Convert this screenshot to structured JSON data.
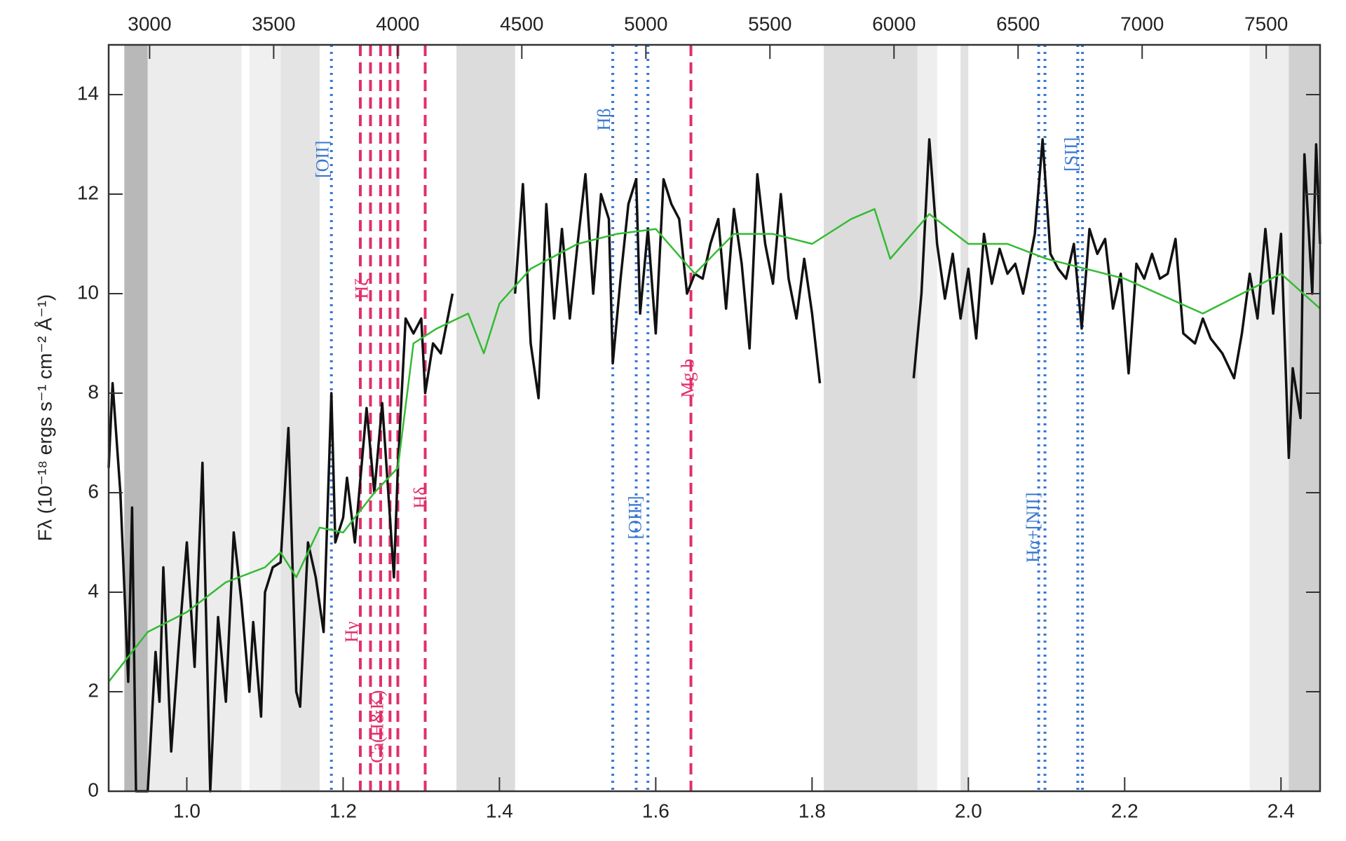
{
  "chart_data": {
    "type": "line",
    "ylabel": "Fλ (10⁻¹⁸ ergs s⁻¹ cm⁻² Å⁻¹)",
    "xlim": [
      0.9,
      2.45
    ],
    "xticks": [
      {
        "value": 1.0,
        "label": "1.0"
      },
      {
        "value": 1.2,
        "label": "1.2"
      },
      {
        "value": 1.4,
        "label": "1.4"
      },
      {
        "value": 1.6,
        "label": "1.6"
      },
      {
        "value": 1.8,
        "label": "1.8"
      },
      {
        "value": 2.0,
        "label": "2.0"
      },
      {
        "value": 2.2,
        "label": "2.2"
      },
      {
        "value": 2.4,
        "label": "2.4"
      }
    ],
    "x2lim": [
      2835,
      7717
    ],
    "x2ticks": [
      3000,
      3500,
      4000,
      4500,
      5000,
      5500,
      6000,
      6500,
      7000,
      7500
    ],
    "ylim": [
      0,
      15
    ],
    "yticks": [
      0,
      2,
      4,
      6,
      8,
      10,
      12,
      14
    ],
    "bands": [
      {
        "range": [
          0.92,
          0.95
        ],
        "color": "#b8b8b8"
      },
      {
        "range": [
          0.95,
          1.07
        ],
        "color": "#ececec"
      },
      {
        "range": [
          1.08,
          1.12
        ],
        "color": "#f0f0f0"
      },
      {
        "range": [
          1.12,
          1.17
        ],
        "color": "#e4e4e4"
      },
      {
        "range": [
          1.345,
          1.42
        ],
        "color": "#dcdcdc"
      },
      {
        "range": [
          1.815,
          1.935
        ],
        "color": "#dcdcdc"
      },
      {
        "range": [
          1.935,
          1.96
        ],
        "color": "#eeeeee"
      },
      {
        "range": [
          1.99,
          2.0
        ],
        "color": "#e2e2e2"
      },
      {
        "range": [
          2.36,
          2.41
        ],
        "color": "#eeeeee"
      },
      {
        "range": [
          2.41,
          2.45
        ],
        "color": "#d0d0d0"
      }
    ],
    "lines": [
      {
        "x": 1.185,
        "color": "#3a78d0",
        "style": "dotted"
      },
      {
        "x": 1.222,
        "color": "#e0306a",
        "style": "dashed"
      },
      {
        "x": 1.235,
        "color": "#e0306a",
        "style": "dashed"
      },
      {
        "x": 1.248,
        "color": "#e0306a",
        "style": "dashed"
      },
      {
        "x": 1.26,
        "color": "#e0306a",
        "style": "dashed"
      },
      {
        "x": 1.27,
        "color": "#e0306a",
        "style": "dashed"
      },
      {
        "x": 1.305,
        "color": "#e0306a",
        "style": "dashed"
      },
      {
        "x": 1.545,
        "color": "#3a78d0",
        "style": "dotted"
      },
      {
        "x": 1.575,
        "color": "#3a78d0",
        "style": "dotted"
      },
      {
        "x": 1.59,
        "color": "#3a78d0",
        "style": "dotted"
      },
      {
        "x": 1.645,
        "color": "#e0306a",
        "style": "dashed"
      },
      {
        "x": 2.09,
        "color": "#3a78d0",
        "style": "dotted"
      },
      {
        "x": 2.098,
        "color": "#3a78d0",
        "style": "dotted"
      },
      {
        "x": 2.14,
        "color": "#3a78d0",
        "style": "dotted"
      },
      {
        "x": 2.146,
        "color": "#3a78d0",
        "style": "dotted"
      }
    ],
    "annotations": [
      {
        "text": "[OII]",
        "x": 1.185,
        "color": "#3a78d0"
      },
      {
        "text": "Hζ",
        "x": 1.235,
        "color": "#e0306a"
      },
      {
        "text": "Hγ",
        "x": 1.222,
        "color": "#e0306a"
      },
      {
        "text": "Ca(H&K)",
        "x": 1.255,
        "color": "#e0306a"
      },
      {
        "text": "Hδ",
        "x": 1.31,
        "color": "#e0306a"
      },
      {
        "text": "Hβ",
        "x": 1.545,
        "color": "#3a78d0"
      },
      {
        "text": "[OIII]",
        "x": 1.585,
        "color": "#3a78d0"
      },
      {
        "text": "Mg b",
        "x": 1.652,
        "color": "#e0306a"
      },
      {
        "text": "Hα+[NII]",
        "x": 2.094,
        "color": "#3a78d0"
      },
      {
        "text": "[SII]",
        "x": 2.143,
        "color": "#3a78d0"
      }
    ],
    "series": [
      {
        "color": "#111111",
        "x": [
          0.9,
          0.905,
          0.915,
          0.925,
          0.93,
          0.935,
          0.95,
          0.96,
          0.965,
          0.97,
          0.98,
          0.99,
          1.0,
          1.01,
          1.02,
          1.03,
          1.04,
          1.05,
          1.06,
          1.07,
          1.08,
          1.085,
          1.095,
          1.1,
          1.11,
          1.12,
          1.13,
          1.14,
          1.145,
          1.155,
          1.165,
          1.175,
          1.185,
          1.19,
          1.2,
          1.205,
          1.215,
          1.23,
          1.24,
          1.25,
          1.26,
          1.265,
          1.27,
          1.28,
          1.29,
          1.3,
          1.305,
          1.315,
          1.325,
          1.34,
          1.38,
          1.42,
          1.43,
          1.44,
          1.45,
          1.46,
          1.47,
          1.48,
          1.49,
          1.5,
          1.51,
          1.52,
          1.53,
          1.54,
          1.545,
          1.555,
          1.565,
          1.575,
          1.58,
          1.59,
          1.6,
          1.61,
          1.62,
          1.63,
          1.64,
          1.65,
          1.66,
          1.67,
          1.68,
          1.69,
          1.7,
          1.71,
          1.72,
          1.73,
          1.74,
          1.75,
          1.76,
          1.77,
          1.78,
          1.79,
          1.8,
          1.81,
          1.87,
          1.93,
          1.94,
          1.95,
          1.96,
          1.97,
          1.98,
          1.99,
          2.0,
          2.01,
          2.02,
          2.03,
          2.04,
          2.05,
          2.06,
          2.07,
          2.085,
          2.095,
          2.105,
          2.115,
          2.125,
          2.135,
          2.145,
          2.155,
          2.165,
          2.175,
          2.185,
          2.195,
          2.205,
          2.215,
          2.225,
          2.235,
          2.245,
          2.255,
          2.265,
          2.275,
          2.29,
          2.3,
          2.31,
          2.325,
          2.34,
          2.35,
          2.36,
          2.37,
          2.38,
          2.39,
          2.4,
          2.41,
          2.415,
          2.425,
          2.43,
          2.44,
          2.445,
          2.45
        ],
        "values": [
          6.5,
          8.2,
          6,
          2.2,
          5.7,
          0,
          0,
          2.8,
          1.8,
          4.5,
          0.8,
          3,
          5,
          2.5,
          6.6,
          0,
          3.5,
          1.8,
          5.2,
          3.8,
          2,
          3.4,
          1.5,
          4,
          4.5,
          4.6,
          7.3,
          2,
          1.7,
          5,
          4.3,
          3.2,
          8,
          5,
          5.5,
          6.3,
          5,
          7.7,
          6,
          7.8,
          5.5,
          4.3,
          6.5,
          9.5,
          9.2,
          9.5,
          8,
          9,
          8.8,
          10,
          null,
          10,
          12.2,
          9,
          7.9,
          11.8,
          9.5,
          11.3,
          9.5,
          11,
          12.4,
          10,
          12,
          11.5,
          8.6,
          10.3,
          11.8,
          12.3,
          9.6,
          11.3,
          9.2,
          12.3,
          11.8,
          11.5,
          10,
          10.4,
          10.3,
          11,
          11.5,
          9.7,
          11.7,
          10.6,
          8.9,
          12.4,
          11,
          10.2,
          12,
          10.3,
          9.5,
          10.7,
          9.6,
          8.2,
          null,
          8.3,
          10,
          13.1,
          11,
          9.9,
          10.8,
          9.5,
          10.5,
          9.1,
          11.2,
          10.2,
          10.9,
          10.4,
          10.6,
          10,
          11.2,
          13.1,
          10.8,
          10.5,
          10.3,
          11,
          9.3,
          11.3,
          10.8,
          11.1,
          9.7,
          10.4,
          8.4,
          10.6,
          10.3,
          10.8,
          10.3,
          10.4,
          11.1,
          9.2,
          9,
          9.5,
          9.1,
          8.8,
          8.3,
          9.2,
          10.4,
          9.5,
          11.3,
          9.6,
          11.2,
          6.7,
          8.5,
          7.5,
          12.8,
          10,
          13,
          11
        ]
      },
      {
        "color": "#33bb33",
        "x": [
          0.9,
          0.95,
          1.0,
          1.05,
          1.1,
          1.12,
          1.14,
          1.17,
          1.2,
          1.24,
          1.27,
          1.29,
          1.32,
          1.36,
          1.38,
          1.4,
          1.44,
          1.5,
          1.55,
          1.6,
          1.65,
          1.7,
          1.75,
          1.8,
          1.85,
          1.88,
          1.9,
          1.95,
          2.0,
          2.05,
          2.1,
          2.2,
          2.3,
          2.4,
          2.45
        ],
        "values": [
          2.2,
          3.2,
          3.6,
          4.2,
          4.5,
          4.8,
          4.3,
          5.3,
          5.2,
          6,
          6.5,
          9,
          9.3,
          9.6,
          8.8,
          9.8,
          10.5,
          11,
          11.2,
          11.3,
          10.4,
          11.2,
          11.2,
          11,
          11.5,
          11.7,
          10.7,
          11.6,
          11,
          11,
          10.7,
          10.3,
          9.6,
          10.4,
          9.7
        ]
      }
    ]
  }
}
